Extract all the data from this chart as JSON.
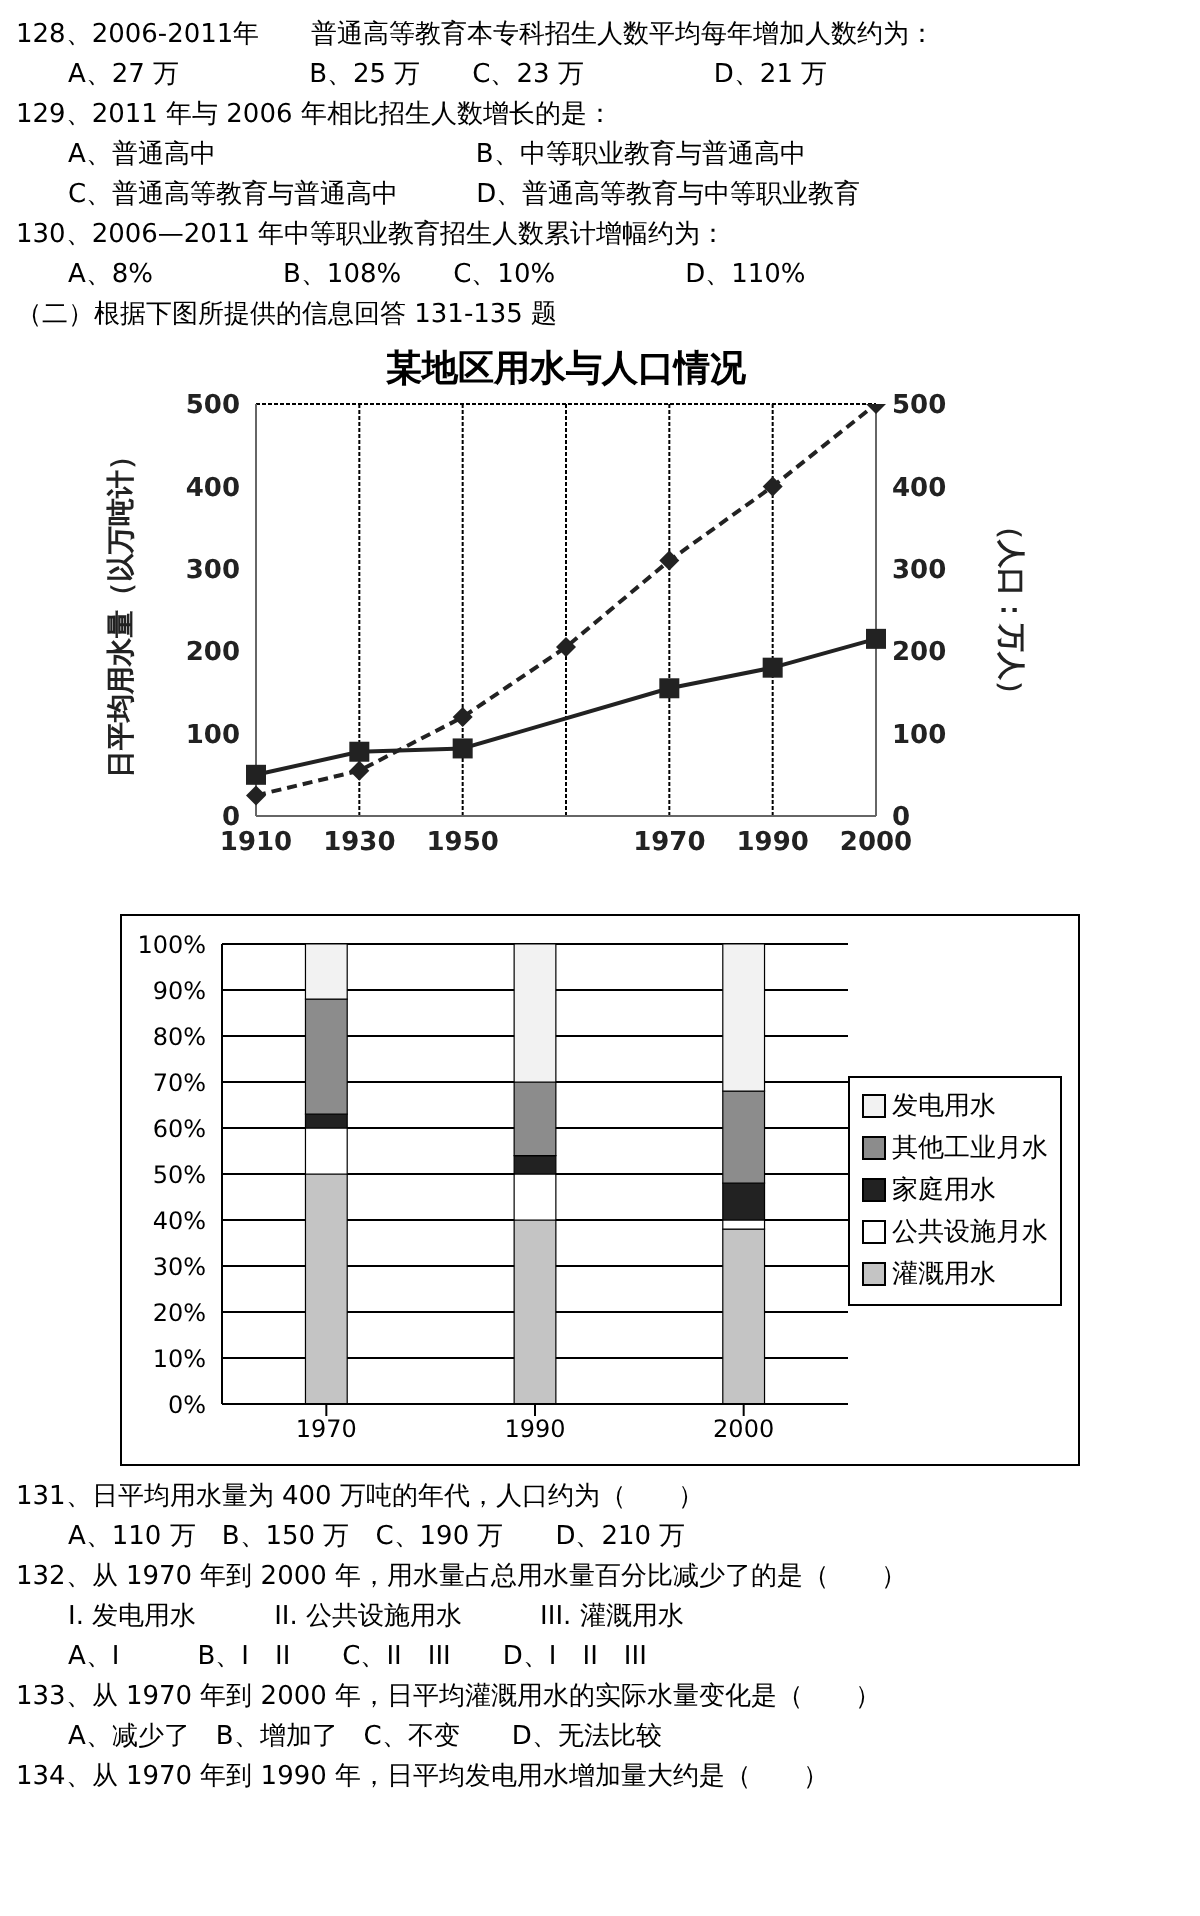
{
  "chart_data": [
    {
      "type": "line",
      "title": "某地区用水与人口情况",
      "ylabel": "日平均用水量（以万吨计）",
      "y2label": "（人口：万人）",
      "annotations": [
        "128、2006-2011年　　普通高等教育本专科招生人数平均每年增加人数约为：",
        "　　A、27 万　　　　　B、25 万　　C、23 万　　　　　D、21 万",
        "129、2011 年与 2006 年相比招生人数增长的是：",
        "　　A、普通高中　　　　　　　　　　B、中等职业教育与普通高中",
        "　　C、普通高等教育与普通高中　　　D、普通高等教育与中等职业教育",
        "130、2006—2011 年中等职业教育招生人数累计增幅约为：",
        "　　A、8%　　　　　B、108%　　C、10%　　　　　D、110%",
        "（二）根据下图所提供的信息回答 131-135 题"
      ],
      "categories": [
        "1910",
        "1930",
        "1950",
        null,
        "1970",
        "1990",
        "2000"
      ],
      "series": [
        {
          "color": "#222222",
          "values": [
            25,
            55,
            120,
            205,
            310,
            400,
            500
          ],
          "line_style": "dashed",
          "marker": "diamond"
        },
        {
          "color": "#222222",
          "values": [
            50,
            78,
            82,
            null,
            155,
            180,
            215
          ],
          "line_style": "solid",
          "marker": "square",
          "axis": "y2"
        }
      ],
      "ylim": [
        0,
        500
      ],
      "yticks": [
        0,
        100,
        200,
        300,
        400,
        500
      ],
      "y2lim": [
        0,
        500
      ],
      "y2ticks": [
        0,
        100,
        200,
        300,
        400,
        500
      ],
      "grid": true
    },
    {
      "type": "bar",
      "stacked": true,
      "categories": [
        "1970",
        "1990",
        "2000"
      ],
      "annotations": [
        "131、日平均用水量为 400 万吨的年代，人口约为（　　）",
        "　　A、110 万　B、150 万　C、190 万　　D、210 万",
        "132、从 1970 年到 2000 年，用水量占总用水量百分比减少了的是（　　）",
        "　　I. 发电用水　　　II. 公共设施用水　　　III. 灌溉用水",
        "　　A、I　　　B、I　II　　C、II　III　　D、I　II　III",
        "133、从 1970 年到 2000 年，日平均灌溉用水的实际水量变化是（　　）",
        "　　A、减少了　B、增加了　C、不变　　D、无法比较",
        "134、从 1970 年到 1990 年，日平均发电用水增加量大约是（　　）"
      ],
      "series": [
        {
          "name": "灌溉用水",
          "color": "#c4c4c4",
          "values": [
            50,
            40,
            38
          ]
        },
        {
          "name": "公共设施月水",
          "color": "#ffffff",
          "values": [
            10,
            10,
            2
          ]
        },
        {
          "name": "家庭用水",
          "color": "#222222",
          "values": [
            3,
            4,
            8
          ]
        },
        {
          "name": "其他工业月水",
          "color": "#8c8c8c",
          "values": [
            25,
            16,
            20
          ]
        },
        {
          "name": "发电用水",
          "color": "#f2f2f2",
          "values": [
            12,
            30,
            32
          ]
        }
      ],
      "ylim": [
        0,
        100
      ],
      "yticks": [
        {
          "value": 0,
          "label": "0%"
        },
        {
          "value": 10,
          "label": "10%"
        },
        {
          "value": 20,
          "label": "20%"
        },
        {
          "value": 30,
          "label": "30%"
        },
        {
          "value": 40,
          "label": "40%"
        },
        {
          "value": 50,
          "label": "50%"
        },
        {
          "value": 60,
          "label": "60%"
        },
        {
          "value": 70,
          "label": "70%"
        },
        {
          "value": 80,
          "label": "80%"
        },
        {
          "value": 90,
          "label": "90%"
        },
        {
          "value": 100,
          "label": "100%"
        }
      ],
      "grid": "y",
      "legend": "right"
    }
  ]
}
